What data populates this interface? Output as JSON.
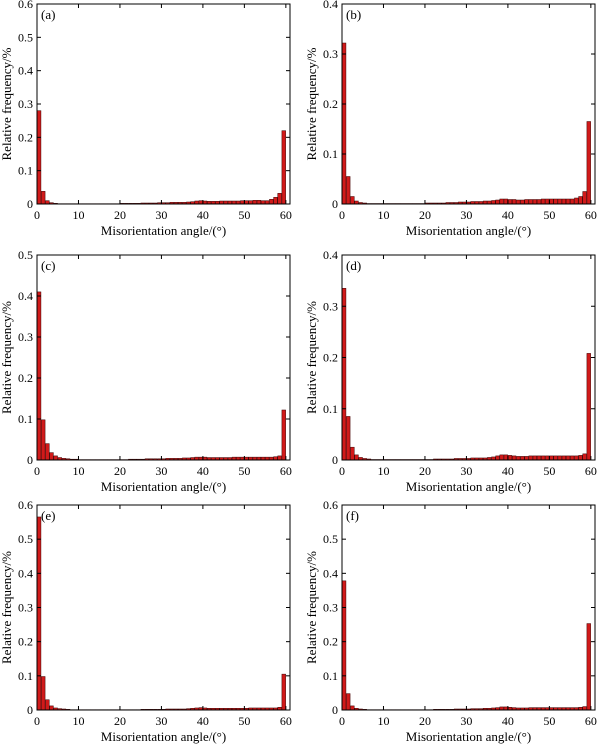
{
  "chart_data": [
    {
      "type": "bar",
      "panel_label": "(a)",
      "xlabel": "Misorientation angle/(°)",
      "ylabel": "Relative frequency/%",
      "xlim": [
        0,
        61
      ],
      "ylim": [
        0,
        0.6
      ],
      "xticks": [
        0,
        10,
        20,
        30,
        40,
        50,
        60
      ],
      "yticks": [
        0,
        0.1,
        0.2,
        0.3,
        0.4,
        0.5,
        0.6
      ],
      "x": [
        1,
        2,
        3,
        4,
        5,
        6,
        7,
        8,
        9,
        10,
        11,
        12,
        13,
        14,
        15,
        16,
        17,
        18,
        19,
        20,
        21,
        22,
        23,
        24,
        25,
        26,
        27,
        28,
        29,
        30,
        31,
        32,
        33,
        34,
        35,
        36,
        37,
        38,
        39,
        40,
        41,
        42,
        43,
        44,
        45,
        46,
        47,
        48,
        49,
        50,
        51,
        52,
        53,
        54,
        55,
        56,
        57,
        58,
        59,
        60
      ],
      "values": [
        0.28,
        0.038,
        0.01,
        0.004,
        0.002,
        0.001,
        0.001,
        0.001,
        0.001,
        0.001,
        0.001,
        0.001,
        0.001,
        0.001,
        0.001,
        0.001,
        0.001,
        0.001,
        0.001,
        0.001,
        0.002,
        0.002,
        0.002,
        0.002,
        0.002,
        0.003,
        0.003,
        0.003,
        0.003,
        0.004,
        0.004,
        0.004,
        0.005,
        0.005,
        0.005,
        0.005,
        0.006,
        0.007,
        0.009,
        0.01,
        0.009,
        0.008,
        0.008,
        0.008,
        0.009,
        0.009,
        0.009,
        0.009,
        0.009,
        0.01,
        0.01,
        0.01,
        0.011,
        0.011,
        0.01,
        0.01,
        0.014,
        0.02,
        0.032,
        0.22
      ]
    },
    {
      "type": "bar",
      "panel_label": "(b)",
      "xlabel": "Misorientation angle/(°)",
      "ylabel": "Relative frequency/%",
      "xlim": [
        0,
        61
      ],
      "ylim": [
        0,
        0.4
      ],
      "xticks": [
        0,
        10,
        20,
        30,
        40,
        50,
        60
      ],
      "yticks": [
        0,
        0.1,
        0.2,
        0.3,
        0.4
      ],
      "x": [
        1,
        2,
        3,
        4,
        5,
        6,
        7,
        8,
        9,
        10,
        11,
        12,
        13,
        14,
        15,
        16,
        17,
        18,
        19,
        20,
        21,
        22,
        23,
        24,
        25,
        26,
        27,
        28,
        29,
        30,
        31,
        32,
        33,
        34,
        35,
        36,
        37,
        38,
        39,
        40,
        41,
        42,
        43,
        44,
        45,
        46,
        47,
        48,
        49,
        50,
        51,
        52,
        53,
        54,
        55,
        56,
        57,
        58,
        59,
        60
      ],
      "values": [
        0.322,
        0.055,
        0.015,
        0.006,
        0.003,
        0.002,
        0.001,
        0.001,
        0.001,
        0.001,
        0.001,
        0.001,
        0.001,
        0.001,
        0.001,
        0.001,
        0.001,
        0.001,
        0.001,
        0.001,
        0.002,
        0.002,
        0.002,
        0.002,
        0.002,
        0.003,
        0.003,
        0.003,
        0.004,
        0.004,
        0.004,
        0.005,
        0.005,
        0.005,
        0.006,
        0.006,
        0.007,
        0.008,
        0.01,
        0.01,
        0.009,
        0.009,
        0.008,
        0.008,
        0.009,
        0.009,
        0.009,
        0.009,
        0.01,
        0.01,
        0.01,
        0.01,
        0.01,
        0.01,
        0.01,
        0.01,
        0.012,
        0.015,
        0.025,
        0.165
      ]
    },
    {
      "type": "bar",
      "panel_label": "(c)",
      "xlabel": "Misorientation angle/(°)",
      "ylabel": "Relative frequency/%",
      "xlim": [
        0,
        61
      ],
      "ylim": [
        0,
        0.5
      ],
      "xticks": [
        0,
        10,
        20,
        30,
        40,
        50,
        60
      ],
      "yticks": [
        0,
        0.1,
        0.2,
        0.3,
        0.4,
        0.5
      ],
      "x": [
        1,
        2,
        3,
        4,
        5,
        6,
        7,
        8,
        9,
        10,
        11,
        12,
        13,
        14,
        15,
        16,
        17,
        18,
        19,
        20,
        21,
        22,
        23,
        24,
        25,
        26,
        27,
        28,
        29,
        30,
        31,
        32,
        33,
        34,
        35,
        36,
        37,
        38,
        39,
        40,
        41,
        42,
        43,
        44,
        45,
        46,
        47,
        48,
        49,
        50,
        51,
        52,
        53,
        54,
        55,
        56,
        57,
        58,
        59,
        60
      ],
      "values": [
        0.41,
        0.098,
        0.04,
        0.018,
        0.01,
        0.006,
        0.004,
        0.003,
        0.002,
        0.002,
        0.001,
        0.001,
        0.001,
        0.001,
        0.001,
        0.001,
        0.001,
        0.001,
        0.001,
        0.001,
        0.001,
        0.001,
        0.002,
        0.002,
        0.002,
        0.002,
        0.003,
        0.003,
        0.003,
        0.003,
        0.003,
        0.004,
        0.004,
        0.004,
        0.004,
        0.005,
        0.005,
        0.006,
        0.007,
        0.007,
        0.007,
        0.006,
        0.006,
        0.006,
        0.006,
        0.006,
        0.006,
        0.007,
        0.007,
        0.007,
        0.007,
        0.007,
        0.007,
        0.007,
        0.007,
        0.007,
        0.007,
        0.008,
        0.01,
        0.122
      ]
    },
    {
      "type": "bar",
      "panel_label": "(d)",
      "xlabel": "Misorientation angle/(°)",
      "ylabel": "Relative frequency/%",
      "xlim": [
        0,
        61
      ],
      "ylim": [
        0,
        0.4
      ],
      "xticks": [
        0,
        10,
        20,
        30,
        40,
        50,
        60
      ],
      "yticks": [
        0,
        0.1,
        0.2,
        0.3,
        0.4
      ],
      "x": [
        1,
        2,
        3,
        4,
        5,
        6,
        7,
        8,
        9,
        10,
        11,
        12,
        13,
        14,
        15,
        16,
        17,
        18,
        19,
        20,
        21,
        22,
        23,
        24,
        25,
        26,
        27,
        28,
        29,
        30,
        31,
        32,
        33,
        34,
        35,
        36,
        37,
        38,
        39,
        40,
        41,
        42,
        43,
        44,
        45,
        46,
        47,
        48,
        49,
        50,
        51,
        52,
        53,
        54,
        55,
        56,
        57,
        58,
        59,
        60
      ],
      "values": [
        0.335,
        0.085,
        0.025,
        0.01,
        0.005,
        0.003,
        0.002,
        0.001,
        0.001,
        0.001,
        0.001,
        0.001,
        0.001,
        0.001,
        0.001,
        0.001,
        0.001,
        0.001,
        0.001,
        0.001,
        0.001,
        0.001,
        0.002,
        0.002,
        0.002,
        0.002,
        0.002,
        0.003,
        0.003,
        0.003,
        0.003,
        0.004,
        0.004,
        0.004,
        0.004,
        0.005,
        0.006,
        0.008,
        0.01,
        0.01,
        0.009,
        0.008,
        0.007,
        0.007,
        0.007,
        0.008,
        0.008,
        0.008,
        0.008,
        0.008,
        0.008,
        0.008,
        0.008,
        0.008,
        0.008,
        0.008,
        0.008,
        0.009,
        0.012,
        0.208
      ]
    },
    {
      "type": "bar",
      "panel_label": "(e)",
      "xlabel": "Misorientation angle/(°)",
      "ylabel": "Relative frequency/%",
      "xlim": [
        0,
        61
      ],
      "ylim": [
        0,
        0.6
      ],
      "xticks": [
        0,
        10,
        20,
        30,
        40,
        50,
        60
      ],
      "yticks": [
        0,
        0.1,
        0.2,
        0.3,
        0.4,
        0.5,
        0.6
      ],
      "x": [
        1,
        2,
        3,
        4,
        5,
        6,
        7,
        8,
        9,
        10,
        11,
        12,
        13,
        14,
        15,
        16,
        17,
        18,
        19,
        20,
        21,
        22,
        23,
        24,
        25,
        26,
        27,
        28,
        29,
        30,
        31,
        32,
        33,
        34,
        35,
        36,
        37,
        38,
        39,
        40,
        41,
        42,
        43,
        44,
        45,
        46,
        47,
        48,
        49,
        50,
        51,
        52,
        53,
        54,
        55,
        56,
        57,
        58,
        59,
        60
      ],
      "values": [
        0.565,
        0.098,
        0.03,
        0.012,
        0.006,
        0.004,
        0.003,
        0.002,
        0.001,
        0.001,
        0.001,
        0.001,
        0.001,
        0.001,
        0.001,
        0.001,
        0.001,
        0.001,
        0.001,
        0.001,
        0.001,
        0.001,
        0.001,
        0.001,
        0.001,
        0.002,
        0.002,
        0.002,
        0.002,
        0.002,
        0.002,
        0.003,
        0.003,
        0.003,
        0.003,
        0.003,
        0.004,
        0.005,
        0.006,
        0.007,
        0.006,
        0.005,
        0.005,
        0.005,
        0.005,
        0.005,
        0.005,
        0.005,
        0.005,
        0.005,
        0.005,
        0.006,
        0.006,
        0.006,
        0.006,
        0.006,
        0.006,
        0.006,
        0.008,
        0.105
      ]
    },
    {
      "type": "bar",
      "panel_label": "(f)",
      "xlabel": "Misorientation angle/(°)",
      "ylabel": "Relative frequency/%",
      "xlim": [
        0,
        61
      ],
      "ylim": [
        0,
        0.6
      ],
      "xticks": [
        0,
        10,
        20,
        30,
        40,
        50,
        60
      ],
      "yticks": [
        0,
        0.1,
        0.2,
        0.3,
        0.4,
        0.5,
        0.6
      ],
      "x": [
        1,
        2,
        3,
        4,
        5,
        6,
        7,
        8,
        9,
        10,
        11,
        12,
        13,
        14,
        15,
        16,
        17,
        18,
        19,
        20,
        21,
        22,
        23,
        24,
        25,
        26,
        27,
        28,
        29,
        30,
        31,
        32,
        33,
        34,
        35,
        36,
        37,
        38,
        39,
        40,
        41,
        42,
        43,
        44,
        45,
        46,
        47,
        48,
        49,
        50,
        51,
        52,
        53,
        54,
        55,
        56,
        57,
        58,
        59,
        60
      ],
      "values": [
        0.378,
        0.048,
        0.012,
        0.005,
        0.003,
        0.002,
        0.001,
        0.001,
        0.001,
        0.001,
        0.001,
        0.001,
        0.001,
        0.001,
        0.001,
        0.001,
        0.001,
        0.001,
        0.001,
        0.001,
        0.001,
        0.001,
        0.002,
        0.002,
        0.002,
        0.002,
        0.002,
        0.003,
        0.003,
        0.003,
        0.003,
        0.004,
        0.004,
        0.004,
        0.005,
        0.005,
        0.006,
        0.007,
        0.009,
        0.009,
        0.008,
        0.007,
        0.006,
        0.006,
        0.006,
        0.007,
        0.007,
        0.007,
        0.007,
        0.007,
        0.007,
        0.007,
        0.007,
        0.007,
        0.007,
        0.007,
        0.007,
        0.008,
        0.01,
        0.253
      ]
    }
  ],
  "style": {
    "bar_fill": "#d11a1a",
    "bar_stroke": "#3a0000",
    "axis_color": "#000000"
  }
}
